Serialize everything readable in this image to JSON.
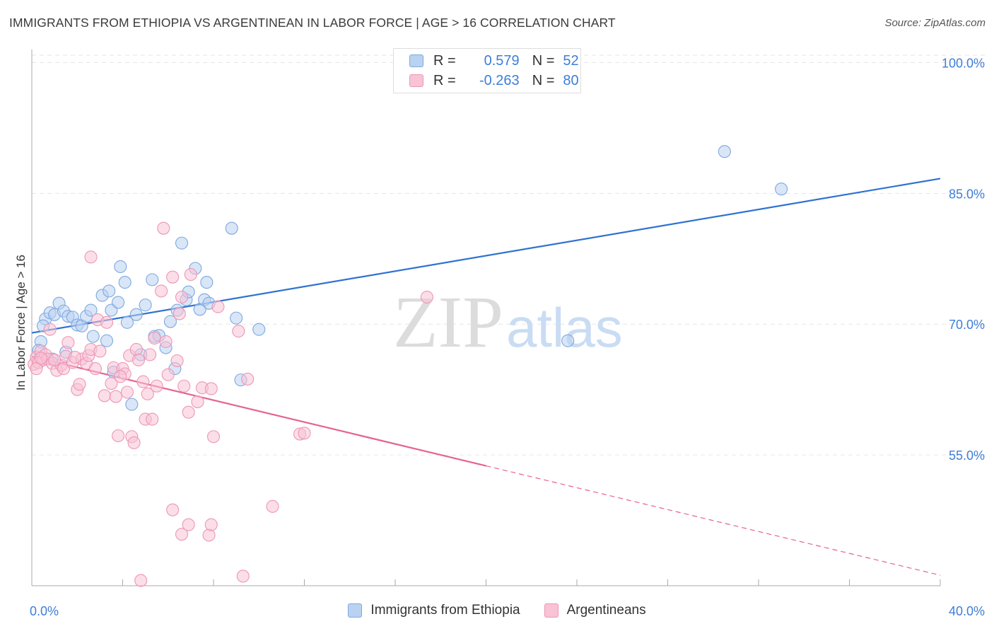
{
  "title": "IMMIGRANTS FROM ETHIOPIA VS ARGENTINEAN IN LABOR FORCE | AGE > 16 CORRELATION CHART",
  "source": "Source: ZipAtlas.com",
  "watermark": {
    "zip": "ZIP",
    "atlas": "atlas"
  },
  "legend": {
    "rows": [
      {
        "r_label": "R =",
        "r_value": "0.579",
        "n_label": "N =",
        "n_value": "52"
      },
      {
        "r_label": "R =",
        "r_value": "-0.263",
        "n_label": "N =",
        "n_value": "80"
      }
    ]
  },
  "colors": {
    "blue_fill": "#b9d2f2",
    "blue_stroke": "#7fa8de",
    "blue_line": "#2f72d0",
    "pink_fill": "#f8c3d5",
    "pink_stroke": "#ee96b5",
    "pink_line": "#e5638f",
    "axis_text": "#3d7ed8",
    "grid": "#e6e6e6"
  },
  "chart_data": {
    "type": "scatter",
    "title": "IMMIGRANTS FROM ETHIOPIA VS ARGENTINEAN IN LABOR FORCE | AGE > 16 CORRELATION CHART",
    "xlabel": "",
    "ylabel": "In Labor Force | Age > 16",
    "xlim": [
      0,
      40
    ],
    "ylim": [
      40,
      101.5
    ],
    "x_tick_labels": [
      "0.0%",
      "40.0%"
    ],
    "y_ticks": [
      55,
      70,
      85,
      100
    ],
    "y_tick_labels": [
      "55.0%",
      "70.0%",
      "85.0%",
      "100.0%"
    ],
    "series": [
      {
        "name": "Immigrants from Ethiopia",
        "color": "blue",
        "r": 0.579,
        "n": 52,
        "trend": {
          "x0": 0,
          "y0": 69.0,
          "x1": 40,
          "y1": 86.7,
          "dashed_from": null
        },
        "points": [
          [
            0.6,
            70.6
          ],
          [
            0.8,
            71.3
          ],
          [
            1.0,
            71.1
          ],
          [
            1.2,
            72.4
          ],
          [
            1.4,
            71.5
          ],
          [
            1.6,
            70.9
          ],
          [
            1.8,
            70.8
          ],
          [
            2.0,
            69.9
          ],
          [
            2.2,
            69.8
          ],
          [
            2.4,
            70.9
          ],
          [
            2.6,
            71.6
          ],
          [
            2.7,
            68.6
          ],
          [
            3.1,
            73.3
          ],
          [
            3.3,
            68.1
          ],
          [
            3.4,
            73.8
          ],
          [
            3.5,
            71.6
          ],
          [
            3.8,
            72.5
          ],
          [
            3.9,
            76.6
          ],
          [
            4.1,
            74.8
          ],
          [
            4.2,
            70.2
          ],
          [
            4.6,
            71.1
          ],
          [
            4.8,
            66.5
          ],
          [
            5.0,
            72.2
          ],
          [
            5.3,
            75.1
          ],
          [
            5.4,
            68.6
          ],
          [
            5.6,
            68.7
          ],
          [
            5.9,
            67.3
          ],
          [
            6.1,
            70.3
          ],
          [
            6.3,
            64.9
          ],
          [
            6.4,
            71.6
          ],
          [
            6.6,
            79.3
          ],
          [
            6.8,
            72.8
          ],
          [
            6.9,
            73.7
          ],
          [
            7.2,
            76.4
          ],
          [
            7.4,
            71.7
          ],
          [
            7.6,
            72.8
          ],
          [
            7.8,
            72.4
          ],
          [
            7.7,
            74.8
          ],
          [
            8.8,
            81.0
          ],
          [
            9.0,
            70.7
          ],
          [
            9.2,
            63.6
          ],
          [
            10.0,
            69.4
          ],
          [
            3.6,
            64.5
          ],
          [
            4.4,
            60.8
          ],
          [
            0.4,
            68.0
          ],
          [
            0.3,
            67.0
          ],
          [
            0.5,
            69.8
          ],
          [
            0.9,
            66.0
          ],
          [
            23.6,
            68.1
          ],
          [
            30.5,
            89.8
          ],
          [
            33.0,
            85.5
          ],
          [
            1.5,
            66.8
          ]
        ]
      },
      {
        "name": "Argentineans",
        "color": "pink",
        "r": -0.263,
        "n": 80,
        "trend": {
          "x0": 0,
          "y0": 66.3,
          "x1": 40,
          "y1": 41.2,
          "dashed_from": 20
        },
        "points": [
          [
            0.1,
            65.4
          ],
          [
            0.2,
            66.2
          ],
          [
            0.3,
            65.6
          ],
          [
            0.4,
            66.9
          ],
          [
            0.5,
            65.9
          ],
          [
            0.6,
            66.5
          ],
          [
            0.7,
            66.0
          ],
          [
            0.8,
            69.4
          ],
          [
            0.9,
            65.5
          ],
          [
            1.1,
            64.7
          ],
          [
            1.3,
            65.3
          ],
          [
            1.4,
            64.9
          ],
          [
            1.5,
            66.3
          ],
          [
            1.6,
            67.9
          ],
          [
            1.8,
            65.6
          ],
          [
            2.0,
            62.5
          ],
          [
            2.1,
            63.1
          ],
          [
            2.2,
            66.0
          ],
          [
            2.4,
            65.5
          ],
          [
            2.5,
            66.4
          ],
          [
            2.6,
            67.1
          ],
          [
            2.8,
            64.9
          ],
          [
            2.9,
            70.5
          ],
          [
            3.0,
            66.9
          ],
          [
            3.2,
            61.8
          ],
          [
            3.3,
            70.2
          ],
          [
            3.5,
            63.2
          ],
          [
            3.6,
            65.0
          ],
          [
            3.7,
            61.7
          ],
          [
            3.8,
            57.2
          ],
          [
            4.0,
            64.9
          ],
          [
            4.1,
            64.3
          ],
          [
            4.2,
            62.2
          ],
          [
            4.3,
            66.4
          ],
          [
            4.4,
            57.1
          ],
          [
            4.5,
            56.4
          ],
          [
            4.6,
            67.1
          ],
          [
            4.7,
            65.9
          ],
          [
            4.9,
            63.4
          ],
          [
            5.0,
            59.1
          ],
          [
            5.1,
            62.0
          ],
          [
            5.2,
            66.5
          ],
          [
            5.3,
            59.1
          ],
          [
            5.4,
            68.4
          ],
          [
            5.5,
            62.9
          ],
          [
            5.7,
            73.8
          ],
          [
            5.9,
            68.0
          ],
          [
            6.0,
            64.2
          ],
          [
            6.2,
            75.4
          ],
          [
            6.4,
            65.8
          ],
          [
            6.5,
            71.2
          ],
          [
            6.6,
            73.1
          ],
          [
            6.7,
            62.9
          ],
          [
            6.9,
            59.9
          ],
          [
            7.0,
            75.7
          ],
          [
            7.3,
            61.1
          ],
          [
            7.5,
            62.7
          ],
          [
            7.9,
            62.6
          ],
          [
            8.0,
            57.1
          ],
          [
            8.2,
            72.0
          ],
          [
            9.1,
            69.2
          ],
          [
            9.5,
            63.7
          ],
          [
            11.8,
            57.4
          ],
          [
            12.0,
            57.5
          ],
          [
            17.4,
            73.1
          ],
          [
            5.8,
            81.0
          ],
          [
            2.6,
            77.7
          ],
          [
            6.2,
            48.7
          ],
          [
            6.6,
            45.9
          ],
          [
            6.9,
            47.0
          ],
          [
            7.8,
            45.8
          ],
          [
            7.9,
            47.0
          ],
          [
            10.6,
            49.1
          ],
          [
            4.8,
            40.6
          ],
          [
            9.3,
            41.1
          ],
          [
            0.2,
            64.9
          ],
          [
            0.4,
            66.1
          ],
          [
            1.0,
            65.9
          ],
          [
            1.9,
            66.2
          ],
          [
            3.9,
            64.0
          ]
        ]
      }
    ]
  }
}
